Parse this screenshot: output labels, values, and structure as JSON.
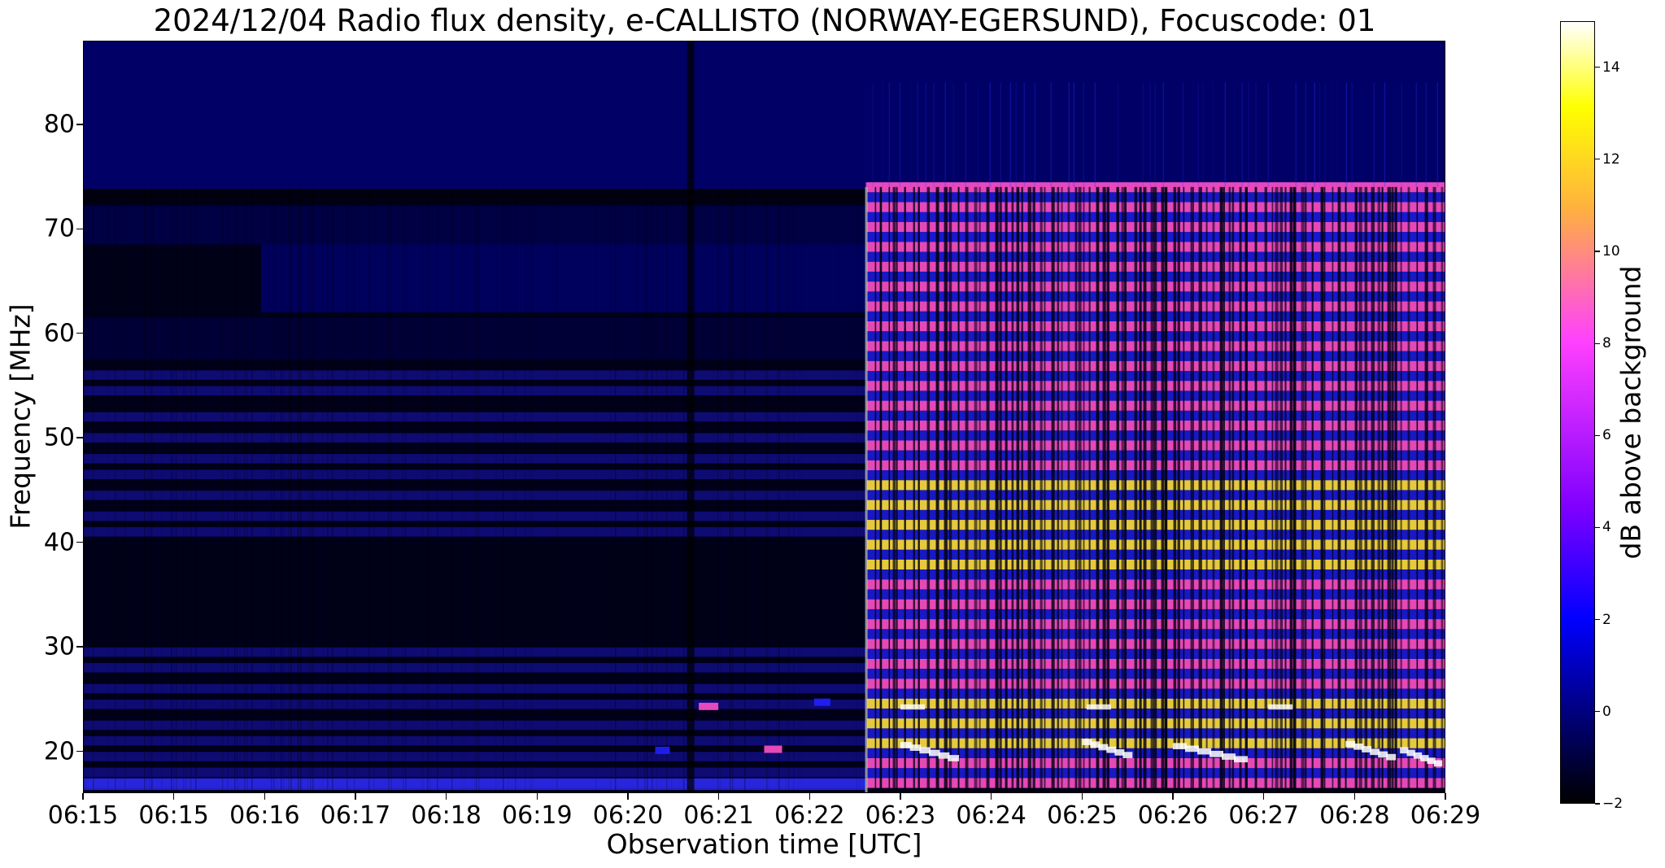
{
  "chart_data": {
    "type": "heatmap",
    "title": "2024/12/04  Radio flux density, e-CALLISTO (NORWAY-EGERSUND), Focuscode: 01",
    "xlabel": "Observation time [UTC]",
    "ylabel": "Frequency [MHz]",
    "x_tick_labels": [
      "06:15",
      "06:15",
      "06:16",
      "06:17",
      "06:18",
      "06:19",
      "06:20",
      "06:21",
      "06:22",
      "06:23",
      "06:24",
      "06:25",
      "06:26",
      "06:27",
      "06:28",
      "06:29"
    ],
    "y_ticks": [
      20,
      30,
      40,
      50,
      60,
      70,
      80
    ],
    "ylim": [
      16,
      88
    ],
    "colorbar": {
      "label": "dB above background",
      "ticks": [
        -2,
        0,
        2,
        4,
        6,
        8,
        10,
        12,
        14
      ],
      "range": [
        -2,
        15
      ]
    },
    "burst_onset": "06:22",
    "colors": {
      "quiet": "#000018",
      "upper_band": "#000070",
      "burst_blue": "#2020ff",
      "burst_pink": "#ff50c8",
      "burst_yellow": "#ffe040"
    }
  }
}
